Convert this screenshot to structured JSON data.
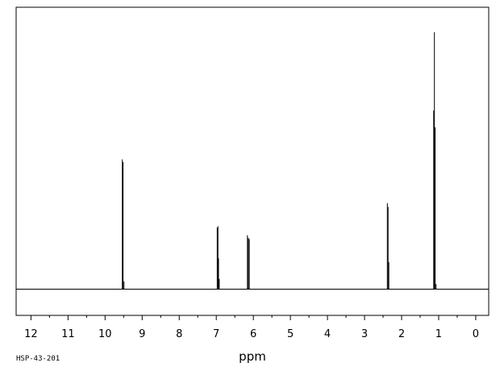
{
  "sample_id": "HSP-43-201",
  "chart_data": {
    "type": "line",
    "xlabel": "ppm",
    "ylabel": "",
    "xlim": [
      12.4,
      -0.35
    ],
    "x_reversed": true,
    "y_axis_visible": false,
    "grid": false,
    "tick_labels": [
      "12",
      "11",
      "10",
      "9",
      "8",
      "7",
      "6",
      "5",
      "4",
      "3",
      "2",
      "1",
      "0"
    ],
    "tick_values": [
      12,
      11,
      10,
      9,
      8,
      7,
      6,
      5,
      4,
      3,
      2,
      1,
      0
    ],
    "minor_tick_step": 0.5,
    "baseline_intensity": 0,
    "max_intensity": 1.0,
    "series": [
      {
        "peaks": [
          {
            "ppm": 9.535,
            "intensity": 0.505
          },
          {
            "ppm": 9.515,
            "intensity": 0.495
          },
          {
            "ppm": 9.49,
            "intensity": 0.03
          },
          {
            "ppm": 6.975,
            "intensity": 0.24
          },
          {
            "ppm": 6.955,
            "intensity": 0.245
          },
          {
            "ppm": 6.94,
            "intensity": 0.12
          },
          {
            "ppm": 6.92,
            "intensity": 0.04
          },
          {
            "ppm": 6.16,
            "intensity": 0.21
          },
          {
            "ppm": 6.135,
            "intensity": 0.2
          },
          {
            "ppm": 6.11,
            "intensity": 0.195
          },
          {
            "ppm": 2.385,
            "intensity": 0.335
          },
          {
            "ppm": 2.365,
            "intensity": 0.32
          },
          {
            "ppm": 2.345,
            "intensity": 0.105
          },
          {
            "ppm": 1.135,
            "intensity": 0.695
          },
          {
            "ppm": 1.115,
            "intensity": 1.0
          },
          {
            "ppm": 1.095,
            "intensity": 0.63
          },
          {
            "ppm": 1.07,
            "intensity": 0.02
          }
        ]
      }
    ]
  }
}
